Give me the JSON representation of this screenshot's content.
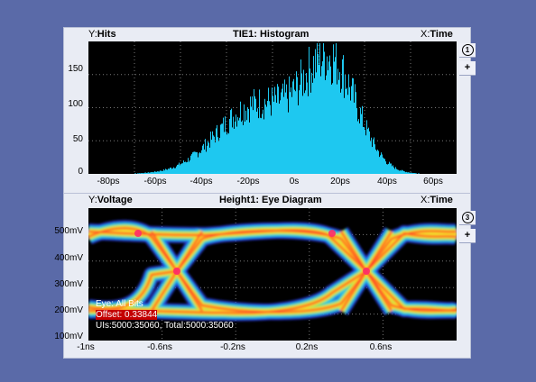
{
  "histogram": {
    "y_label_prefix": "Y:",
    "y_label": "Hits",
    "title": "TIE1: Histogram",
    "x_label_prefix": "X:",
    "x_label": "Time",
    "badge": "1",
    "add_button": "+",
    "y_ticks": [
      "150",
      "100",
      "50",
      "0"
    ],
    "x_ticks": [
      "-80ps",
      "-60ps",
      "-40ps",
      "-20ps",
      "0s",
      "20ps",
      "40ps",
      "60ps"
    ],
    "bar_color": "#1ec8f0"
  },
  "eye": {
    "y_label_prefix": "Y:",
    "y_label": "Voltage",
    "title": "Height1: Eye Diagram",
    "x_label_prefix": "X:",
    "x_label": "Time",
    "badge": "3",
    "add_button": "+",
    "y_ticks": [
      "500mV",
      "400mV",
      "300mV",
      "200mV",
      "100mV"
    ],
    "x_ticks": [
      "-1ns",
      "-0.6ns",
      "-0.2ns",
      "0.2ns",
      "0.6ns"
    ],
    "info": {
      "line1": "Eye: All Bits",
      "line2": "Offset: 0.33844",
      "line3": "UIs:5000:35060, Total:5000:35060"
    }
  },
  "colors": {
    "background": "#5a6aa8",
    "plot_bg": "#000000",
    "histogram_bars": "#1ec8f0"
  }
}
